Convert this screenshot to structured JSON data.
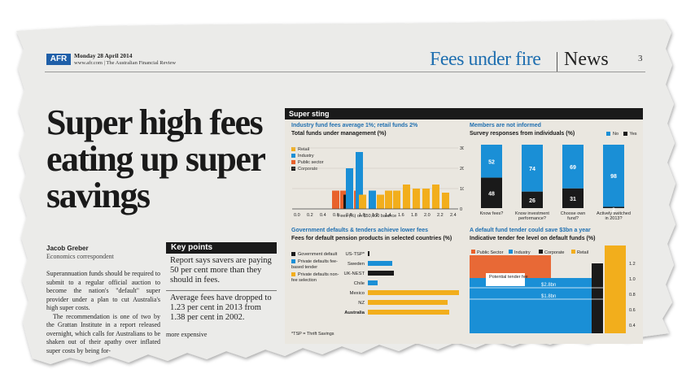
{
  "masthead": {
    "logo": "AFR",
    "date": "Monday 28 April 2014",
    "pub": "www.afr.com | The Australian Financial Review",
    "section": "Fees under fire",
    "section_news": "News",
    "page": "3"
  },
  "article": {
    "headline": "Super high fees eating up super savings",
    "byline": "Jacob Greber",
    "role": "Economics correspondent",
    "para1": "Superannuation funds should be required to submit to a regular official auction to become the nation's \"default\" super provider under a plan to cut Australia's high super costs.",
    "para2": "The recommendation is one of two by the Grattan Institute in a report released overnight, which calls for Australians to be shaken out of their apathy over inflated super costs by being for-",
    "more": "more expensive"
  },
  "key_points": {
    "title": "Key points",
    "p1": "Report says savers are paying 50 per cent more than they should in fees.",
    "p2": "Average fees have dropped to 1.23 per cent in 2013 from 1.38 per cent in 2002."
  },
  "graphic": {
    "title": "Super sting",
    "colors": {
      "retail": "#f2ae1c",
      "industry": "#1a8fd6",
      "public": "#e8622c",
      "corporate": "#1a1a1a",
      "no": "#1a8fd6",
      "yes": "#1a1a1a"
    },
    "chart1": {
      "subtitle": "Industry fund fees average 1%; retail funds 2%",
      "title": "Total funds under management (%)",
      "legend": [
        "Retail",
        "Industry",
        "Public sector",
        "Corporate"
      ],
      "xticks": [
        "0.0",
        "0.2",
        "0.4",
        "0.6",
        "0.8",
        "1.0",
        "1.2",
        "1.4",
        "1.6",
        "1.8",
        "2.0",
        "2.2",
        "2.4"
      ],
      "yticks": [
        "0",
        "10",
        "20",
        "30"
      ],
      "xlabel": "Fees (%) on $50,000 balance"
    },
    "chart2": {
      "subtitle": "Members are not informed",
      "title": "Survey responses from individuals (%)",
      "legend": [
        "No",
        "Yes"
      ],
      "categories": [
        "Know fees?",
        "Know investment performance?",
        "Choose own fund?",
        "Actively switched in 2013?"
      ],
      "no": [
        52,
        74,
        69,
        98
      ],
      "yes": [
        48,
        26,
        31,
        2
      ]
    },
    "chart3": {
      "subtitle": "Government defaults & tenders achieve lower fees",
      "title": "Fees for default pension products in selected countries (%)",
      "legend": [
        "Government default",
        "Private defaults fee-based tender",
        "Private defaults non-fee selection"
      ],
      "countries": [
        "US-TSP*",
        "Sweden",
        "UK-NEST",
        "Chile",
        "Mexico",
        "NZ",
        "Australia"
      ],
      "footnote": "*TSP = Thrift Savings"
    },
    "chart4": {
      "subtitle": "A default fund tender could save $3bn a year",
      "title": "Indicative tender fee level on default funds (%)",
      "legend": [
        "Public Sector",
        "Industry",
        "Corporate",
        "Retail"
      ],
      "annotation": "Potential tender fee",
      "savings_high": "$2.8bn",
      "savings_low": "$1.8bn",
      "yticks": [
        "0.4",
        "0.6",
        "0.8",
        "1.0",
        "1.2"
      ]
    }
  }
}
